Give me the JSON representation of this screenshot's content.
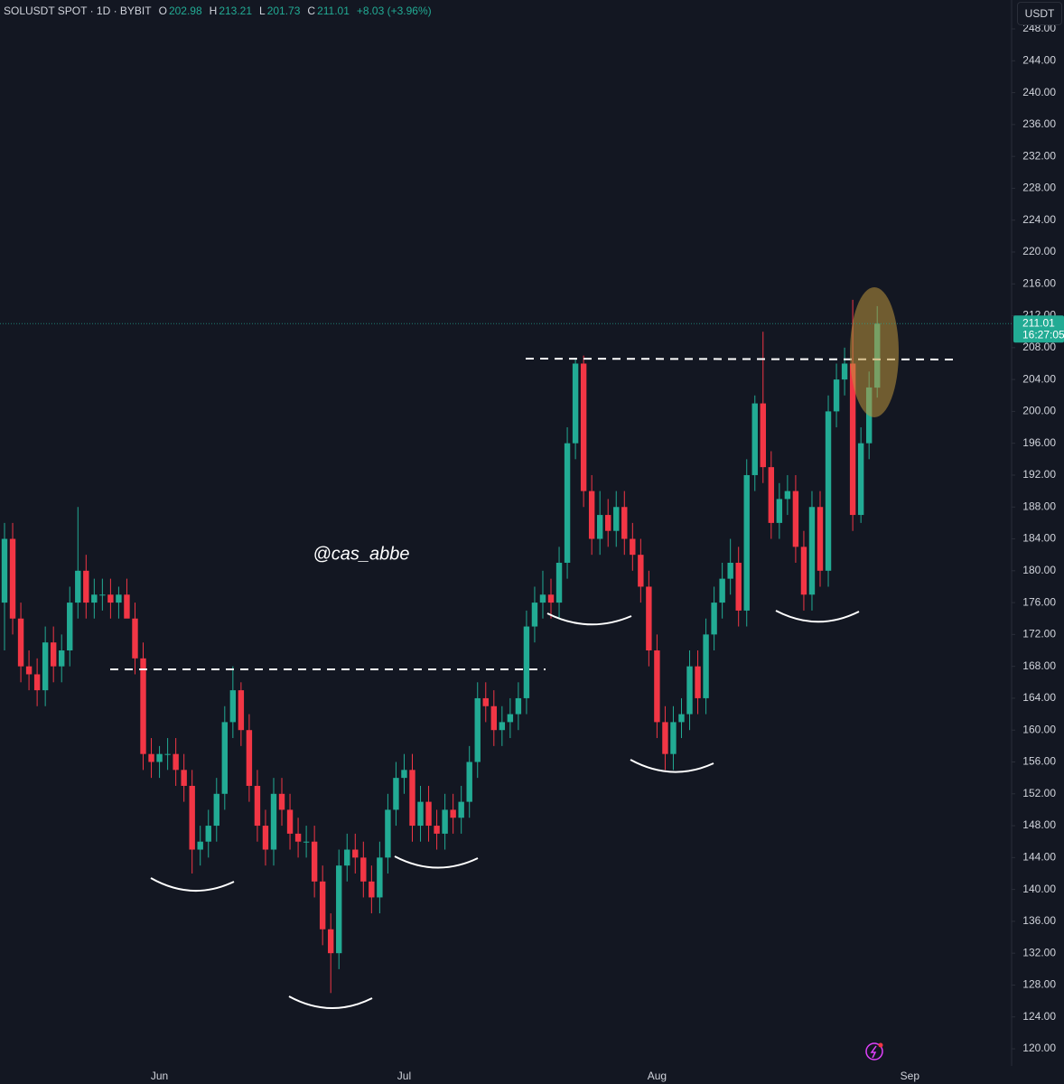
{
  "header": {
    "symbol": "SOLUSDT SPOT · 1D · BYBIT",
    "o_label": "O",
    "h_label": "H",
    "l_label": "L",
    "c_label": "C",
    "change": "+8.03 (+3.96%)",
    "currency": "USDT"
  },
  "chart_data": {
    "type": "candlestick",
    "watermark": "@cas_abbe",
    "countdown": "16:27:05",
    "up_color": "#22ab94",
    "down_color": "#f23645",
    "categories": [
      null,
      null,
      null,
      null,
      null,
      null,
      null,
      null,
      null,
      null,
      null,
      null,
      null,
      null,
      null,
      null,
      null,
      null,
      null,
      "Jun",
      null,
      null,
      null,
      null,
      null,
      null,
      null,
      null,
      null,
      null,
      null,
      null,
      null,
      null,
      null,
      null,
      null,
      null,
      null,
      null,
      null,
      null,
      null,
      null,
      null,
      null,
      null,
      null,
      null,
      "Jul",
      null,
      null,
      null,
      null,
      null,
      null,
      null,
      null,
      null,
      null,
      null,
      null,
      null,
      null,
      null,
      null,
      null,
      null,
      null,
      null,
      null,
      null,
      null,
      null,
      null,
      null,
      null,
      null,
      null,
      null,
      "Aug",
      null,
      null,
      null,
      null,
      null,
      null,
      null,
      null,
      null,
      null,
      null,
      null,
      null,
      null,
      null,
      null,
      null,
      null,
      null,
      null,
      null,
      null,
      null,
      null,
      null,
      null,
      null,
      null,
      null,
      null,
      "Sep"
    ],
    "open": [
      176,
      184,
      174,
      168,
      167,
      165,
      171,
      168,
      170,
      176,
      180,
      176,
      177,
      177,
      176,
      177,
      174,
      169,
      157,
      156,
      157,
      157,
      155,
      153,
      145,
      146,
      148,
      152,
      161,
      165,
      160,
      153,
      148,
      145,
      152,
      150,
      147,
      146,
      146,
      141,
      135,
      132,
      143,
      145,
      144,
      141,
      139,
      144,
      150,
      154,
      155,
      148,
      151,
      148,
      147,
      150,
      149,
      151,
      156,
      164,
      163,
      160,
      161,
      162,
      164,
      173,
      176,
      177,
      176,
      181,
      196,
      206,
      190,
      184,
      187,
      185,
      188,
      184,
      182,
      178,
      170,
      161,
      157,
      161,
      162,
      168,
      164,
      172,
      176,
      179,
      181,
      175,
      192,
      201,
      193,
      186,
      189,
      190,
      183,
      177,
      188,
      180,
      200,
      204,
      206,
      187,
      196,
      202.98,
      null,
      null,
      null,
      null
    ],
    "high": [
      186,
      186,
      176,
      170,
      169,
      173,
      173,
      172,
      178,
      188,
      182,
      179,
      179,
      179,
      178,
      179,
      176,
      171,
      159,
      158,
      159,
      159,
      157,
      155,
      148,
      150,
      154,
      163,
      168,
      166,
      162,
      155,
      150,
      154,
      154,
      152,
      149,
      148,
      148,
      143,
      137,
      145,
      147,
      147,
      146,
      143,
      146,
      152,
      156,
      157,
      157,
      153,
      153,
      150,
      152,
      152,
      153,
      158,
      166,
      166,
      165,
      163,
      164,
      166,
      175,
      178,
      180,
      179,
      183,
      198,
      206.5,
      207,
      192,
      190,
      189,
      190,
      190,
      186,
      184,
      180,
      172,
      163,
      163,
      164,
      170,
      170,
      174,
      178,
      181,
      184,
      183,
      194,
      202,
      210,
      195,
      191,
      192,
      192,
      185,
      190,
      190,
      202,
      206,
      208,
      214,
      198,
      205,
      213.21,
      null,
      null,
      null,
      null
    ],
    "low": [
      170,
      172,
      166,
      165,
      163,
      163,
      166,
      166,
      168,
      174,
      174,
      174,
      175,
      174,
      174,
      175,
      167,
      155,
      154,
      154,
      155,
      153,
      151,
      142,
      143,
      144,
      146,
      150,
      159,
      158,
      151,
      146,
      143,
      143,
      148,
      145,
      144,
      144,
      139,
      133,
      127,
      130,
      141,
      142,
      139,
      137,
      137,
      142,
      148,
      152,
      146,
      146,
      146,
      145,
      145,
      147,
      147,
      149,
      154,
      161,
      158,
      158,
      159,
      160,
      162,
      171,
      174,
      174,
      174,
      179,
      194,
      188,
      182,
      182,
      183,
      183,
      182,
      180,
      176,
      168,
      159,
      155,
      155,
      159,
      160,
      162,
      162,
      170,
      174,
      177,
      173,
      173,
      190,
      191,
      184,
      184,
      187,
      181,
      175,
      175,
      178,
      178,
      198,
      202,
      185,
      186,
      194,
      201.73,
      null,
      null,
      null,
      null
    ],
    "close": [
      184,
      174,
      168,
      167,
      165,
      171,
      168,
      170,
      176,
      180,
      176,
      177,
      177,
      176,
      177,
      174,
      169,
      157,
      156,
      157,
      157,
      155,
      153,
      145,
      146,
      148,
      152,
      161,
      165,
      160,
      153,
      148,
      145,
      152,
      150,
      147,
      146,
      146,
      141,
      135,
      132,
      143,
      145,
      144,
      141,
      139,
      144,
      150,
      154,
      155,
      148,
      151,
      148,
      147,
      150,
      149,
      151,
      156,
      164,
      163,
      160,
      161,
      162,
      164,
      173,
      176,
      177,
      176,
      181,
      196,
      206,
      190,
      184,
      187,
      185,
      188,
      184,
      182,
      178,
      170,
      161,
      157,
      161,
      162,
      168,
      164,
      172,
      176,
      179,
      181,
      175,
      192,
      201,
      193,
      186,
      189,
      190,
      183,
      177,
      188,
      180,
      200,
      204,
      206,
      187,
      196,
      203,
      211.01,
      null,
      null,
      null,
      null
    ],
    "ylim": [
      117.85,
      251.63
    ],
    "yticks": [
      {
        "value": 120,
        "label": "120.00"
      },
      {
        "value": 124,
        "label": "124.00"
      },
      {
        "value": 128,
        "label": "128.00"
      },
      {
        "value": 132,
        "label": "132.00"
      },
      {
        "value": 136,
        "label": "136.00"
      },
      {
        "value": 140,
        "label": "140.00"
      },
      {
        "value": 144,
        "label": "144.00"
      },
      {
        "value": 148,
        "label": "148.00"
      },
      {
        "value": 152,
        "label": "152.00"
      },
      {
        "value": 156,
        "label": "156.00"
      },
      {
        "value": 160,
        "label": "160.00"
      },
      {
        "value": 164,
        "label": "164.00"
      },
      {
        "value": 168,
        "label": "168.00"
      },
      {
        "value": 172,
        "label": "172.00"
      },
      {
        "value": 176,
        "label": "176.00"
      },
      {
        "value": 180,
        "label": "180.00"
      },
      {
        "value": 184,
        "label": "184.00"
      },
      {
        "value": 188,
        "label": "188.00"
      },
      {
        "value": 192,
        "label": "192.00"
      },
      {
        "value": 196,
        "label": "196.00"
      },
      {
        "value": 200,
        "label": "200.00"
      },
      {
        "value": 204,
        "label": "204.00"
      },
      {
        "value": 208,
        "label": "208.00"
      },
      {
        "value": 212,
        "label": "212.00"
      },
      {
        "value": 216,
        "label": "216.00"
      },
      {
        "value": 220,
        "label": "220.00"
      },
      {
        "value": 224,
        "label": "224.00"
      },
      {
        "value": 228,
        "label": "228.00"
      },
      {
        "value": 232,
        "label": "232.00"
      },
      {
        "value": 236,
        "label": "236.00"
      },
      {
        "value": 240,
        "label": "240.00"
      },
      {
        "value": 244,
        "label": "244.00"
      },
      {
        "value": 248,
        "label": "248.00"
      }
    ]
  }
}
